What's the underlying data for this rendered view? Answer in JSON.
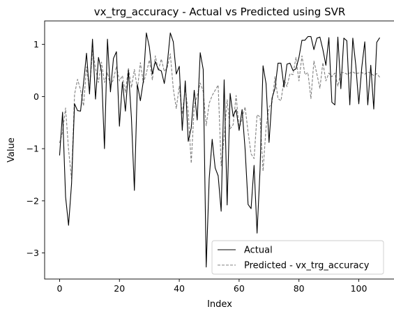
{
  "chart_data": {
    "type": "line",
    "title": "vx_trg_accuracy - Actual vs Predicted using SVR",
    "xlabel": "Index",
    "ylabel": "Value",
    "xlim": [
      -5,
      112
    ],
    "ylim": [
      -3.5,
      1.45
    ],
    "xticks": [
      0,
      20,
      40,
      60,
      80,
      100
    ],
    "yticks": [
      -3,
      -2,
      -1,
      0,
      1
    ],
    "legend_position": "lower-right",
    "series": [
      {
        "name": "Actual",
        "color": "#000000",
        "style": "solid",
        "values": [
          -1.13,
          -0.3,
          -1.92,
          -2.47,
          -1.67,
          -0.14,
          -0.27,
          -0.28,
          0.25,
          0.83,
          0.05,
          1.1,
          -0.05,
          0.75,
          0.49,
          -1.0,
          1.1,
          0.09,
          0.73,
          0.86,
          -0.57,
          0.28,
          -0.28,
          0.5,
          -0.4,
          -1.8,
          0.23,
          -0.08,
          0.3,
          1.22,
          0.95,
          0.43,
          0.67,
          0.52,
          0.49,
          0.25,
          0.63,
          1.22,
          1.05,
          0.43,
          0.58,
          -0.65,
          0.3,
          -0.86,
          -0.6,
          0.12,
          -0.45,
          0.84,
          0.52,
          -3.27,
          -1.58,
          -0.82,
          -1.37,
          -1.52,
          -2.2,
          0.32,
          -2.08,
          0.06,
          -0.38,
          -0.25,
          -0.65,
          -0.25,
          -1.01,
          -2.07,
          -2.15,
          -1.32,
          -2.62,
          -1.4,
          0.59,
          0.25,
          -0.88,
          -0.03,
          0.16,
          0.64,
          0.64,
          0.18,
          0.62,
          0.64,
          0.5,
          0.53,
          0.75,
          1.08,
          1.08,
          1.15,
          1.15,
          0.9,
          1.12,
          1.14,
          0.9,
          0.6,
          1.13,
          -0.11,
          -0.16,
          1.14,
          0.15,
          1.12,
          1.07,
          -0.16,
          1.12,
          0.6,
          -0.14,
          0.56,
          1.05,
          -0.16,
          0.6,
          -0.24,
          1.04,
          1.13
        ]
      },
      {
        "name": "Predicted - vx_trg_accuracy",
        "color": "#808080",
        "style": "dashed",
        "values": [
          -0.89,
          -0.68,
          -0.22,
          -1.02,
          -1.58,
          0.04,
          0.33,
          0.13,
          -0.18,
          0.57,
          0.12,
          0.89,
          0.54,
          0.27,
          0.66,
          0.27,
          0.46,
          0.2,
          0.33,
          0.58,
          0.3,
          0.4,
          0.08,
          0.55,
          0.17,
          0.52,
          0.14,
          0.65,
          0.26,
          0.45,
          0.7,
          0.32,
          0.78,
          0.5,
          0.72,
          0.48,
          0.56,
          0.82,
          0.15,
          -0.23,
          0.2,
          -0.34,
          0.15,
          -0.3,
          -1.28,
          -0.17,
          0.02,
          0.26,
          0.1,
          -0.56,
          -0.13,
          0.02,
          0.12,
          0.22,
          -1.33,
          -0.78,
          -0.06,
          -0.62,
          -0.54,
          0.02,
          -0.62,
          -0.42,
          -0.2,
          -0.68,
          -1.1,
          -1.19,
          -0.35,
          -0.39,
          -1.43,
          -0.6,
          -0.21,
          -0.11,
          0.38,
          -0.04,
          -0.08,
          0.32,
          0.19,
          0.44,
          0.42,
          0.75,
          0.3,
          0.78,
          0.42,
          0.46,
          -0.04,
          0.68,
          0.43,
          0.16,
          0.65,
          0.3,
          0.45,
          0.38,
          0.45,
          0.2,
          0.46,
          0.46,
          0.43,
          0.45,
          0.47,
          0.44,
          0.45,
          0.46,
          0.43,
          0.47,
          0.45,
          0.4,
          0.44,
          0.37
        ]
      }
    ]
  }
}
